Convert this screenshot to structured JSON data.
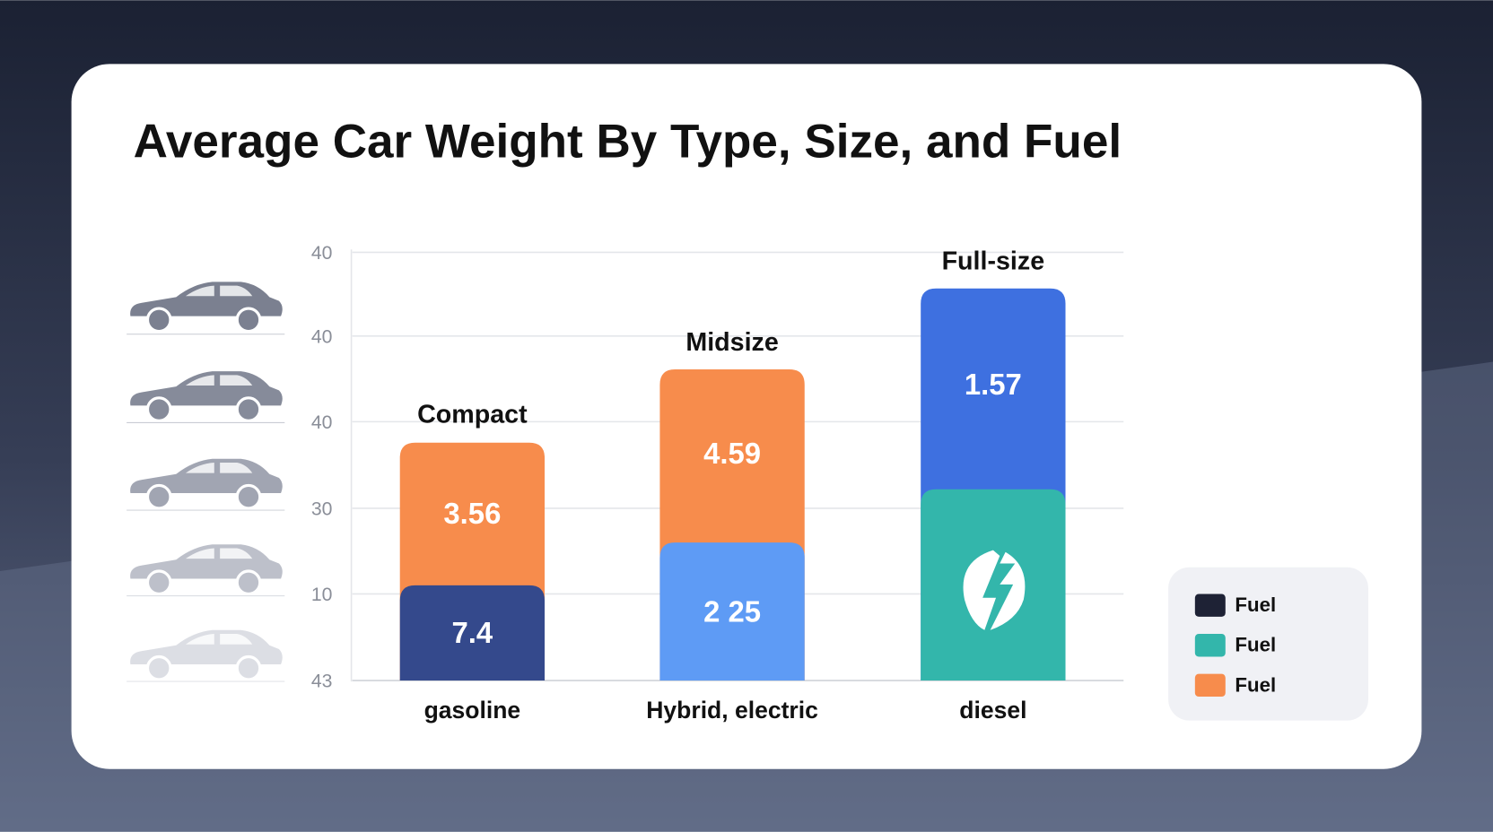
{
  "header": {
    "title": "Average Car Weight By Type, Size, and Fuel"
  },
  "axis": {
    "labels": [
      40,
      40,
      40,
      30,
      10,
      43
    ]
  },
  "columns": [
    {
      "size": "Compact",
      "fuel": "gasoline",
      "segments": [
        {
          "label": 3.56,
          "color": "#f78c4c"
        },
        {
          "label": 7.4,
          "color": "#34498c"
        }
      ]
    },
    {
      "size": "Midsize",
      "fuel": "Hybrid, electric",
      "segments": [
        {
          "label": 4.59,
          "color": "#f78c4c"
        },
        {
          "label": "2 25",
          "color": "#5e9bf5"
        }
      ]
    },
    {
      "size": "Full-size",
      "fuel": "diesel",
      "segments": [
        {
          "label": 1.57,
          "color": "#3e70e0"
        },
        {
          "color": "#33b6ab"
        }
      ]
    }
  ],
  "legend": {
    "items": [
      {
        "label": "Fuel",
        "color": "#1e2235"
      },
      {
        "label": "Fuel",
        "color": "#33b6ab"
      },
      {
        "label": "Fuel",
        "color": "#f78c4c"
      }
    ]
  }
}
